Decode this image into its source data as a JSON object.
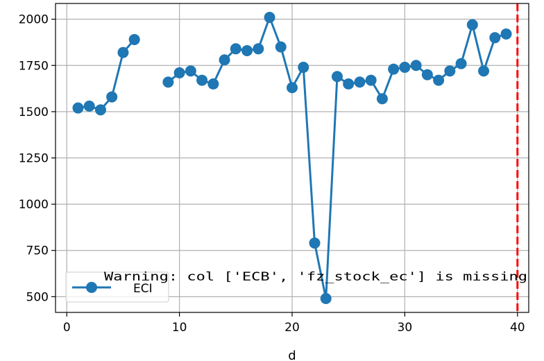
{
  "chart_data": {
    "type": "line",
    "xlabel": "d",
    "ylabel": "",
    "title": "",
    "xlim": [
      -1,
      41
    ],
    "ylim": [
      415,
      2085
    ],
    "xticks": [
      0,
      10,
      20,
      30,
      40
    ],
    "yticks": [
      500,
      750,
      1000,
      1250,
      1500,
      1750,
      2000
    ],
    "grid": true,
    "legend_position": "lower-left",
    "series": [
      {
        "name": "ECI",
        "color": "#1f77b4",
        "x": [
          1,
          2,
          3,
          4,
          5,
          6,
          7,
          8,
          9,
          10,
          11,
          12,
          13,
          14,
          15,
          16,
          17,
          18,
          19,
          20,
          21,
          22,
          23,
          24,
          25,
          26,
          27,
          28,
          29,
          30,
          31,
          32,
          33,
          34,
          35,
          36,
          37,
          38,
          39
        ],
        "y": [
          1520,
          1530,
          1510,
          1580,
          1820,
          1890,
          null,
          null,
          1660,
          1710,
          1720,
          1670,
          1650,
          1780,
          1840,
          1830,
          1840,
          2010,
          1850,
          1630,
          1740,
          790,
          490,
          1690,
          1650,
          1660,
          1670,
          1570,
          1730,
          1740,
          1750,
          1700,
          1670,
          1720,
          1760,
          1970,
          1720,
          1900,
          1920
        ]
      }
    ],
    "vline": {
      "x": 40,
      "color": "#ff0000",
      "style": "dashed"
    },
    "annotation": "Warning: col ['ECB', 'fz_stock_ec'] is missing"
  }
}
